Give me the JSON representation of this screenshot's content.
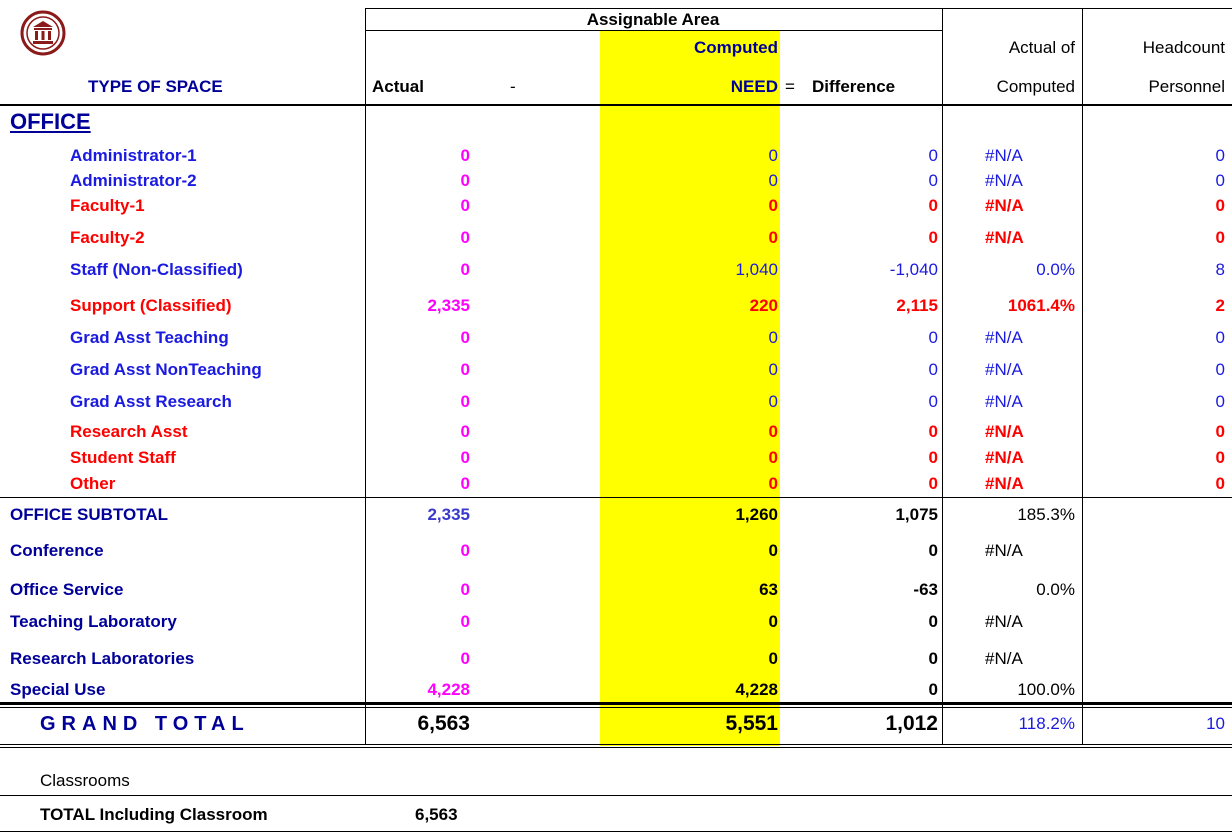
{
  "header": {
    "group": "Assignable Area",
    "type_of_space": "TYPE OF SPACE",
    "actual": "Actual",
    "minus": "-",
    "computed": "Computed",
    "need": "NEED",
    "equals": "=",
    "difference": "Difference",
    "actual_of": "Actual of",
    "computed2": "Computed",
    "headcount": "Headcount",
    "personnel": "Personnel"
  },
  "section": "OFFICE",
  "office_rows": [
    {
      "label": "Administrator-1",
      "color": "blue",
      "actual": "0",
      "computed": "0",
      "difference": "0",
      "pct": "#N/A",
      "headcount": "0"
    },
    {
      "label": "Administrator-2",
      "color": "blue",
      "actual": "0",
      "computed": "0",
      "difference": "0",
      "pct": "#N/A",
      "headcount": "0"
    },
    {
      "label": "Faculty-1",
      "color": "red",
      "actual": "0",
      "computed": "0",
      "difference": "0",
      "pct": "#N/A",
      "headcount": "0"
    },
    {
      "label": "Faculty-2",
      "color": "red",
      "actual": "0",
      "computed": "0",
      "difference": "0",
      "pct": "#N/A",
      "headcount": "0"
    },
    {
      "label": "Staff (Non-Classified)",
      "color": "blue",
      "actual": "0",
      "computed": "1,040",
      "difference": "-1,040",
      "pct": "0.0%",
      "headcount": "8"
    },
    {
      "label": "Support (Classified)",
      "color": "red",
      "actual": "2,335",
      "computed": "220",
      "difference": "2,115",
      "pct": "1061.4%",
      "headcount": "2"
    },
    {
      "label": "Grad Asst Teaching",
      "color": "blue",
      "actual": "0",
      "computed": "0",
      "difference": "0",
      "pct": "#N/A",
      "headcount": "0"
    },
    {
      "label": "Grad Asst NonTeaching",
      "color": "blue",
      "actual": "0",
      "computed": "0",
      "difference": "0",
      "pct": "#N/A",
      "headcount": "0"
    },
    {
      "label": "Grad Asst Research",
      "color": "blue",
      "actual": "0",
      "computed": "0",
      "difference": "0",
      "pct": "#N/A",
      "headcount": "0"
    },
    {
      "label": "Research Asst",
      "color": "red",
      "actual": "0",
      "computed": "0",
      "difference": "0",
      "pct": "#N/A",
      "headcount": "0"
    },
    {
      "label": "Student Staff",
      "color": "red",
      "actual": "0",
      "computed": "0",
      "difference": "0",
      "pct": "#N/A",
      "headcount": "0"
    },
    {
      "label": "Other",
      "color": "red",
      "actual": "0",
      "computed": "0",
      "difference": "0",
      "pct": "#N/A",
      "headcount": "0"
    }
  ],
  "summary_rows": [
    {
      "label": "OFFICE SUBTOTAL",
      "actual": "2,335",
      "computed": "1,260",
      "difference": "1,075",
      "pct": "185.3%"
    },
    {
      "label": "Conference",
      "actual": "0",
      "computed": "0",
      "difference": "0",
      "pct": "#N/A"
    },
    {
      "label": "Office Service",
      "actual": "0",
      "computed": "63",
      "difference": "-63",
      "pct": "0.0%"
    },
    {
      "label": "Teaching Laboratory",
      "actual": "0",
      "computed": "0",
      "difference": "0",
      "pct": "#N/A"
    },
    {
      "label": "Research Laboratories",
      "actual": "0",
      "computed": "0",
      "difference": "0",
      "pct": "#N/A"
    },
    {
      "label": "Special Use",
      "actual": "4,228",
      "computed": "4,228",
      "difference": "0",
      "pct": "100.0%"
    }
  ],
  "grand_total": {
    "label": "GRAND TOTAL",
    "actual": "6,563",
    "computed": "5,551",
    "difference": "1,012",
    "pct": "118.2%",
    "headcount": "10"
  },
  "classrooms": "Classrooms",
  "total_including": {
    "label": "TOTAL Including Classroom",
    "value": "6,563"
  }
}
